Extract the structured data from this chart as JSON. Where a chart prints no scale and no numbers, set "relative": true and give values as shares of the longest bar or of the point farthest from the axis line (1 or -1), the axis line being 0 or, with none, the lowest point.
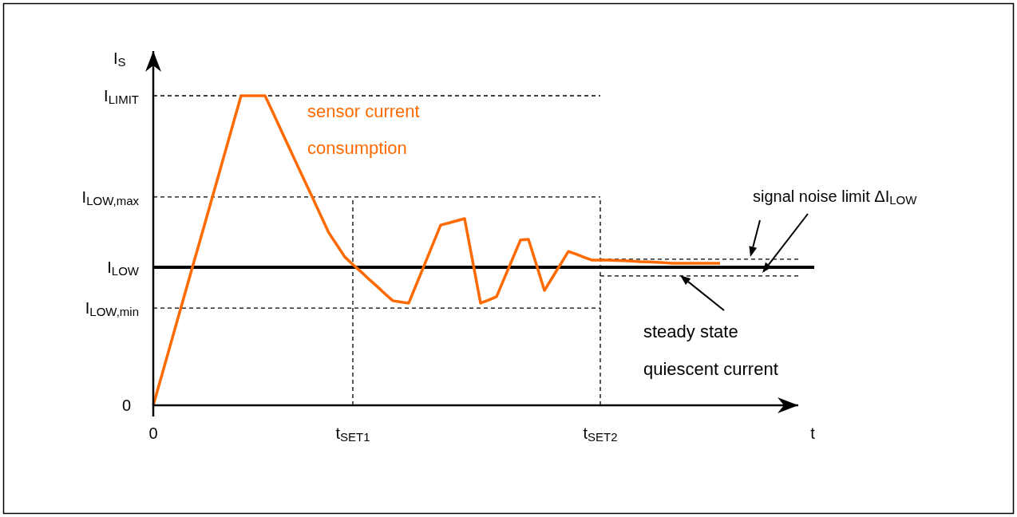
{
  "chart_data": {
    "type": "line",
    "relative": true,
    "xlabel": "t",
    "ylabel": "I$_{S}$",
    "categories": [
      "0",
      null,
      null,
      null,
      null,
      null,
      null,
      null,
      null,
      null,
      null,
      null,
      null,
      null,
      null,
      null,
      null,
      null,
      null,
      null,
      null,
      null,
      null,
      null,
      null,
      "t$_{SET1}$",
      null,
      null,
      null,
      null,
      null,
      null,
      null,
      null,
      null,
      null,
      null,
      null,
      null,
      null,
      null,
      null,
      null,
      null,
      null,
      null,
      null,
      null,
      null,
      null,
      null,
      null,
      null,
      null,
      null,
      null,
      "t$_{SET2}$",
      null,
      null,
      null,
      null,
      null,
      null,
      null,
      null,
      null,
      null,
      null,
      null,
      null,
      null,
      null,
      null,
      null,
      null,
      null,
      null,
      null,
      null,
      null,
      null
    ],
    "legend": false,
    "marker": "none",
    "line_style": "solid",
    "series": [
      {
        "name": "sensor current consumption",
        "color": "#ff6a00",
        "values": [
          0,
          0.091,
          0.182,
          0.273,
          0.364,
          0.455,
          0.545,
          0.636,
          0.727,
          0.818,
          0.909,
          1,
          1,
          1,
          1,
          0.945,
          0.889,
          0.834,
          0.778,
          0.723,
          0.668,
          0.612,
          0.557,
          0.518,
          0.479,
          0.455,
          0.432,
          0.408,
          0.385,
          0.361,
          0.338,
          0.334,
          0.33,
          0.393,
          0.456,
          0.519,
          0.582,
          0.589,
          0.596,
          0.603,
          0.467,
          0.33,
          0.34,
          0.351,
          0.412,
          0.473,
          0.534,
          0.536,
          0.454,
          0.371,
          0.413,
          0.455,
          0.497,
          0.488,
          0.478,
          0.469,
          0.469,
          0.469,
          0.468,
          0.467,
          0.466,
          0.464,
          0.463,
          0.462,
          0.461,
          0.459,
          0.459,
          0.459,
          0.459,
          0.459,
          0.459,
          0.459,
          null,
          null,
          null,
          null,
          null,
          null,
          null,
          null,
          null
        ]
      }
    ],
    "ref_lines": [
      {
        "axis": "y",
        "value": 1,
        "label": "I$_{LIMIT}$",
        "line_style": "dashed",
        "color": "#000000"
      },
      {
        "axis": "y",
        "value": 0.673,
        "label": "I$_{LOW,max}$",
        "line_style": "dashed",
        "color": "#000000"
      },
      {
        "axis": "y",
        "value": 0.446,
        "label": "I$_{LOW}$",
        "line_style": "solid",
        "color": "#000000"
      },
      {
        "axis": "y",
        "value": 0.314,
        "label": "I$_{LOW,min}$",
        "line_style": "dashed",
        "color": "#000000"
      },
      {
        "axis": "y",
        "value": 0.472,
        "line_style": "dashed",
        "color": "#000000"
      },
      {
        "axis": "y",
        "value": 0.418,
        "line_style": "dashed",
        "color": "#000000"
      },
      {
        "axis": "x",
        "value": "t$_{SET1}$",
        "line_style": "dashed",
        "color": "#000000"
      },
      {
        "axis": "x",
        "value": "t$_{SET2}$",
        "line_style": "dashed",
        "color": "#000000"
      }
    ],
    "annotations": [
      "0",
      "signal noise limit ΔI$_{LOW}$",
      "steady state quiescent current"
    ]
  }
}
